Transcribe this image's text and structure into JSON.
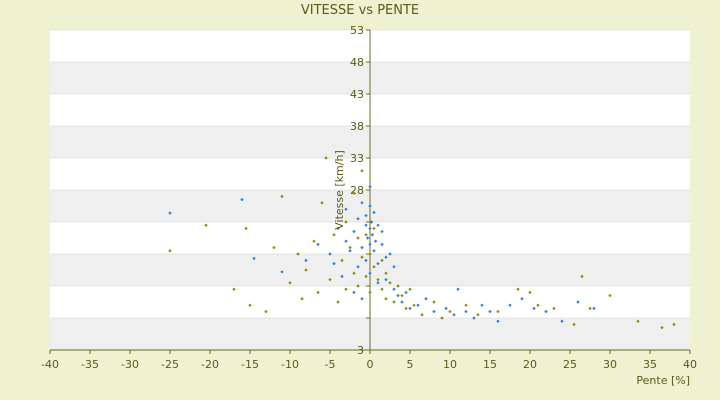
{
  "chart_data": {
    "type": "scatter",
    "title": "VITESSE vs PENTE",
    "xlabel": "Pente [%]",
    "ylabel": "Vitesse [km/h]",
    "xlim": [
      -40,
      40
    ],
    "ylim": [
      3,
      53
    ],
    "xticks": [
      -40,
      -35,
      -30,
      -25,
      -20,
      -15,
      -10,
      -5,
      0,
      5,
      10,
      15,
      20,
      25,
      30,
      35,
      40
    ],
    "yticks": [
      3,
      8,
      13,
      18,
      23,
      28,
      33,
      38,
      43,
      48,
      53
    ],
    "ytick_labels": [
      "3",
      "",
      "",
      "",
      "",
      "28",
      "33",
      "38",
      "43",
      "48",
      "53"
    ],
    "grid": "horizontal alternating bands",
    "series": [
      {
        "color": "#2f7fd6",
        "points": [
          [
            -25,
            24.4
          ],
          [
            -16,
            26.5
          ],
          [
            -14.5,
            17.3
          ],
          [
            -11,
            15.2
          ],
          [
            -8,
            17.0
          ],
          [
            -6.5,
            19.5
          ],
          [
            -5,
            18.0
          ],
          [
            -4.5,
            16.5
          ],
          [
            -4,
            22.0
          ],
          [
            -3.5,
            14.5
          ],
          [
            -3,
            20.0
          ],
          [
            -3,
            25.0
          ],
          [
            -2.5,
            18.5
          ],
          [
            -2,
            21.5
          ],
          [
            -2,
            12.0
          ],
          [
            -1.5,
            23.5
          ],
          [
            -1.5,
            16.0
          ],
          [
            -1,
            19.0
          ],
          [
            -1,
            26.0
          ],
          [
            -1,
            11.0
          ],
          [
            -0.5,
            22.5
          ],
          [
            -0.5,
            17.0
          ],
          [
            -0.5,
            24.0
          ],
          [
            -0.3,
            20.5
          ],
          [
            0,
            28.5
          ],
          [
            0,
            25.5
          ],
          [
            0,
            22.0
          ],
          [
            0,
            19.5
          ],
          [
            0,
            15.0
          ],
          [
            0.2,
            23.0
          ],
          [
            0.3,
            21.0
          ],
          [
            0.5,
            24.5
          ],
          [
            0.5,
            18.5
          ],
          [
            0.7,
            20.0
          ],
          [
            1,
            22.5
          ],
          [
            1,
            16.5
          ],
          [
            1,
            13.5
          ],
          [
            1.5,
            19.5
          ],
          [
            1.5,
            21.5
          ],
          [
            2,
            17.5
          ],
          [
            2,
            14.0
          ],
          [
            2.5,
            18.0
          ],
          [
            3,
            12.5
          ],
          [
            3,
            16.0
          ],
          [
            3.5,
            11.5
          ],
          [
            4,
            10.5
          ],
          [
            4.5,
            12.0
          ],
          [
            5,
            9.5
          ],
          [
            6,
            10.0
          ],
          [
            7,
            11.0
          ],
          [
            8,
            9.0
          ],
          [
            9.5,
            9.5
          ],
          [
            10.5,
            8.5
          ],
          [
            11,
            12.5
          ],
          [
            12,
            9.0
          ],
          [
            13,
            8.0
          ],
          [
            14,
            10.0
          ],
          [
            15,
            9.0
          ],
          [
            16,
            7.5
          ],
          [
            17.5,
            10.0
          ],
          [
            19,
            11.0
          ],
          [
            20.5,
            9.5
          ],
          [
            22,
            9.0
          ],
          [
            24,
            7.5
          ],
          [
            26,
            10.5
          ],
          [
            28,
            9.5
          ]
        ]
      },
      {
        "color": "#8a8a10",
        "points": [
          [
            -25,
            18.5
          ],
          [
            -20.5,
            22.5
          ],
          [
            -17,
            12.5
          ],
          [
            -15.5,
            22.0
          ],
          [
            -15,
            10.0
          ],
          [
            -13,
            9.0
          ],
          [
            -12,
            19.0
          ],
          [
            -11,
            27.0
          ],
          [
            -10,
            13.5
          ],
          [
            -9,
            18.0
          ],
          [
            -8.5,
            11.0
          ],
          [
            -8,
            15.5
          ],
          [
            -7,
            20.0
          ],
          [
            -6.5,
            12.0
          ],
          [
            -6,
            26.0
          ],
          [
            -5.5,
            33.0
          ],
          [
            -5,
            14.0
          ],
          [
            -4.5,
            21.0
          ],
          [
            -4,
            10.5
          ],
          [
            -3.5,
            17.0
          ],
          [
            -3,
            23.0
          ],
          [
            -3,
            12.5
          ],
          [
            -2.5,
            19.0
          ],
          [
            -2,
            15.0
          ],
          [
            -2,
            27.5
          ],
          [
            -1.5,
            13.0
          ],
          [
            -1.5,
            20.5
          ],
          [
            -1,
            17.5
          ],
          [
            -1,
            31.0
          ],
          [
            -0.5,
            14.5
          ],
          [
            -0.5,
            21.0
          ],
          [
            0,
            18.0
          ],
          [
            0,
            12.0
          ],
          [
            0.5,
            16.0
          ],
          [
            0.5,
            22.0
          ],
          [
            1,
            14.0
          ],
          [
            1.5,
            12.5
          ],
          [
            1.5,
            17.0
          ],
          [
            2,
            15.0
          ],
          [
            2,
            11.0
          ],
          [
            2.5,
            13.5
          ],
          [
            3,
            10.5
          ],
          [
            3.5,
            13.0
          ],
          [
            4,
            11.5
          ],
          [
            4.5,
            9.5
          ],
          [
            5,
            12.5
          ],
          [
            5.5,
            10.0
          ],
          [
            6.5,
            8.5
          ],
          [
            8,
            10.5
          ],
          [
            9,
            8.0
          ],
          [
            10,
            9.0
          ],
          [
            12,
            10.0
          ],
          [
            13.5,
            8.5
          ],
          [
            16,
            9.0
          ],
          [
            18.5,
            12.5
          ],
          [
            20,
            12.0
          ],
          [
            21,
            10.0
          ],
          [
            23,
            9.5
          ],
          [
            25.5,
            7.0
          ],
          [
            26.5,
            14.5
          ],
          [
            27.5,
            9.5
          ],
          [
            30,
            11.5
          ],
          [
            33.5,
            7.5
          ],
          [
            36.5,
            6.5
          ],
          [
            38,
            7.0
          ]
        ]
      }
    ]
  }
}
